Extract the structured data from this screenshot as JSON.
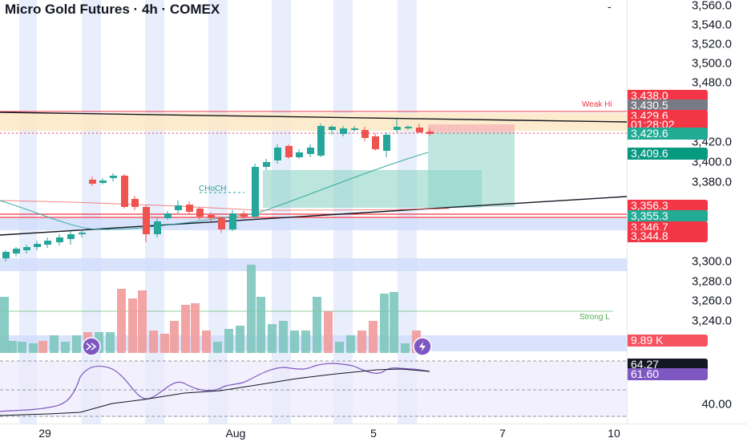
{
  "header": {
    "title": "Micro Gold Futures · 4h · COMEX",
    "menu_glyph": "-"
  },
  "price_scale": {
    "ticks": [
      "3,560.0",
      "3,540.0",
      "3,520.0",
      "3,500.0",
      "3,480.0",
      "3,420.0",
      "3,400.0",
      "3,380.0",
      "3,300.0",
      "3,280.0",
      "3,260.0",
      "3,240.0",
      "40.00"
    ],
    "labels": [
      {
        "text": "3,438.0",
        "color": "#f23645"
      },
      {
        "text": "3,430.5",
        "color": "#787b86"
      },
      {
        "text": "3,429.6",
        "color": "#f23645"
      },
      {
        "text": "01:28:02",
        "color": "#f23645"
      },
      {
        "text": "3,429.6",
        "color": "#22ab94"
      },
      {
        "text": "3,409.6",
        "color": "#089981"
      },
      {
        "text": "3,356.3",
        "color": "#f23645"
      },
      {
        "text": "3,355.3",
        "color": "#22ab94"
      },
      {
        "text": "3,346.7",
        "color": "#f23645"
      },
      {
        "text": "3,344.8",
        "color": "#f23645"
      },
      {
        "text": "9.89 K",
        "color": "#f7525f"
      },
      {
        "text": "64.27",
        "color": "#131722"
      },
      {
        "text": "61.60",
        "color": "#7e57c2"
      }
    ]
  },
  "time_scale": {
    "labels": [
      "29",
      "Aug",
      "5",
      "7",
      "10"
    ]
  },
  "annotations": {
    "weak_high": "Weak Hi",
    "choch": "CHoCH",
    "strong_low": "Strong L"
  },
  "colors": {
    "up": "#26a69a",
    "down": "#ef5350",
    "session_band": "#dfe7fb",
    "rsi": "#7e57c2"
  }
}
